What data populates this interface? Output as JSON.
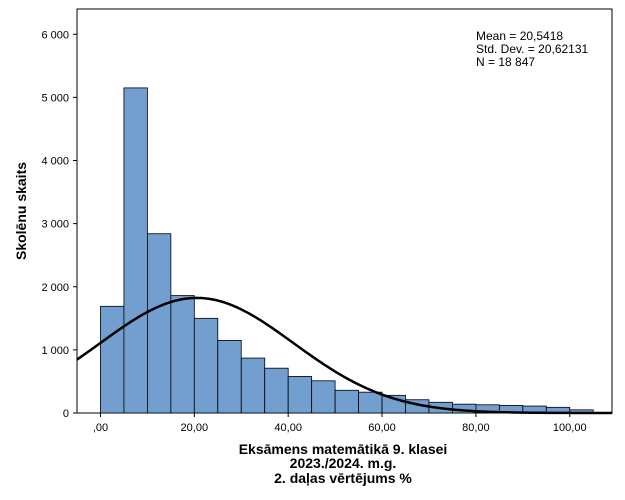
{
  "chart_data": {
    "type": "bar",
    "xlabel_lines": [
      "Eksāmens matemātikā 9. klasei",
      "2023./2024. m.g.",
      "2. daļas vērtējums %"
    ],
    "ylabel": "Skolēnu skaits",
    "xlim": [
      -5,
      109
    ],
    "ylim": [
      0,
      6400
    ],
    "x_ticks": [
      0,
      20,
      40,
      60,
      80,
      100
    ],
    "x_tick_labels": [
      ",00",
      "20,00",
      "40,00",
      "60,00",
      "80,00",
      "100,00"
    ],
    "y_ticks": [
      0,
      1000,
      2000,
      3000,
      4000,
      5000,
      6000
    ],
    "y_tick_labels": [
      "0",
      "1 000",
      "2 000",
      "3 000",
      "4 000",
      "5 000",
      "6 000"
    ],
    "bin_width": 5,
    "bin_starts": [
      0,
      5,
      10,
      15,
      20,
      25,
      30,
      35,
      40,
      45,
      50,
      55,
      60,
      65,
      70,
      75,
      80,
      85,
      90,
      95,
      100
    ],
    "values": [
      1690,
      5150,
      2840,
      1860,
      1500,
      1150,
      870,
      710,
      580,
      510,
      360,
      330,
      280,
      210,
      170,
      140,
      130,
      120,
      110,
      90,
      50
    ],
    "normal_curve": {
      "mean": 20.5418,
      "sd": 20.62131,
      "n": 18847
    },
    "stats": {
      "mean": "Mean = 20,5418",
      "sd": "Std. Dev. = 20,62131",
      "n": "N = 18 847"
    }
  }
}
